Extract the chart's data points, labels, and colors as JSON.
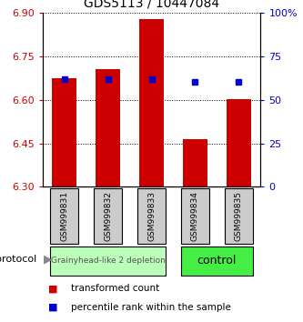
{
  "title": "GDS5113 / 10447084",
  "samples": [
    "GSM999831",
    "GSM999832",
    "GSM999833",
    "GSM999834",
    "GSM999835"
  ],
  "bar_tops": [
    6.675,
    6.705,
    6.878,
    6.465,
    6.603
  ],
  "bar_bottom": 6.3,
  "bar_color": "#cc0000",
  "blue_values": [
    6.671,
    6.671,
    6.671,
    6.663,
    6.663
  ],
  "blue_color": "#0000cc",
  "ylim_left": [
    6.3,
    6.9
  ],
  "yticks_left": [
    6.3,
    6.45,
    6.6,
    6.75,
    6.9
  ],
  "ylim_right": [
    0,
    100
  ],
  "yticks_right": [
    0,
    25,
    50,
    75,
    100
  ],
  "ytick_labels_right": [
    "0",
    "25",
    "50",
    "75",
    "100%"
  ],
  "left_tick_color": "#cc0000",
  "right_tick_color": "#0000cc",
  "group0_label": "Grainyhead-like 2 depletion",
  "group0_color": "#bbffbb",
  "group0_text_size": 6.5,
  "group1_label": "control",
  "group1_color": "#44ee44",
  "group1_text_size": 9,
  "protocol_label": "protocol",
  "legend_red_label": "transformed count",
  "legend_blue_label": "percentile rank within the sample",
  "bar_width": 0.55,
  "grid_color": "#000000",
  "bg_color": "#ffffff",
  "sample_box_color": "#cccccc"
}
